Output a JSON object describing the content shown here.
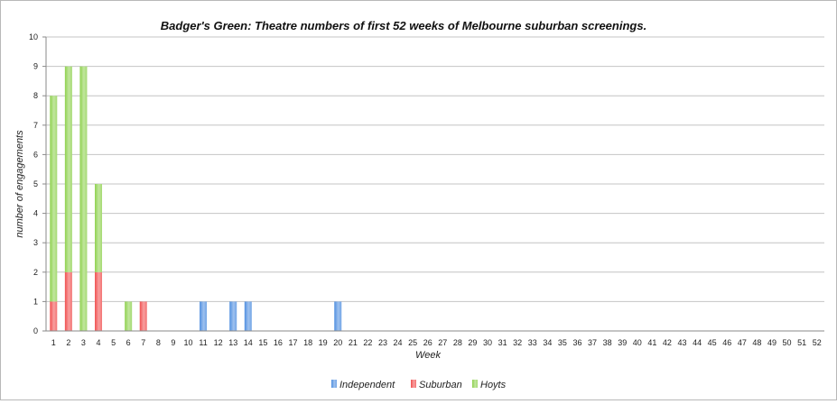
{
  "chart_data": {
    "type": "bar",
    "stacked": true,
    "title": "Badger's Green: Theatre numbers of first 52 weeks of Melbourne suburban screenings.",
    "xlabel": "Week",
    "ylabel": "number of engagements",
    "ylim": [
      0,
      10
    ],
    "yticks": [
      "0",
      "1",
      "2",
      "3",
      "4",
      "5",
      "6",
      "7",
      "8",
      "9",
      "10"
    ],
    "grid": true,
    "legend_position": "bottom",
    "categories": [
      "1",
      "2",
      "3",
      "4",
      "5",
      "6",
      "7",
      "8",
      "9",
      "10",
      "11",
      "12",
      "13",
      "14",
      "15",
      "16",
      "17",
      "18",
      "19",
      "20",
      "21",
      "22",
      "23",
      "24",
      "25",
      "26",
      "27",
      "28",
      "29",
      "30",
      "31",
      "32",
      "33",
      "34",
      "35",
      "36",
      "37",
      "38",
      "39",
      "40",
      "41",
      "42",
      "43",
      "44",
      "45",
      "46",
      "47",
      "48",
      "49",
      "50",
      "51",
      "52"
    ],
    "series": [
      {
        "name": "Independent",
        "color": "#4f8fe0",
        "values": [
          0,
          0,
          0,
          0,
          0,
          0,
          0,
          0,
          0,
          0,
          1,
          0,
          1,
          1,
          0,
          0,
          0,
          0,
          0,
          1,
          0,
          0,
          0,
          0,
          0,
          0,
          0,
          0,
          0,
          0,
          0,
          0,
          0,
          0,
          0,
          0,
          0,
          0,
          0,
          0,
          0,
          0,
          0,
          0,
          0,
          0,
          0,
          0,
          0,
          0,
          0,
          0
        ]
      },
      {
        "name": "Suburban",
        "color": "#f05050",
        "values": [
          1,
          2,
          0,
          2,
          0,
          0,
          1,
          0,
          0,
          0,
          0,
          0,
          0,
          0,
          0,
          0,
          0,
          0,
          0,
          0,
          0,
          0,
          0,
          0,
          0,
          0,
          0,
          0,
          0,
          0,
          0,
          0,
          0,
          0,
          0,
          0,
          0,
          0,
          0,
          0,
          0,
          0,
          0,
          0,
          0,
          0,
          0,
          0,
          0,
          0,
          0,
          0
        ]
      },
      {
        "name": "Hoyts",
        "color": "#8fd14f",
        "values": [
          7,
          7,
          9,
          3,
          0,
          1,
          0,
          0,
          0,
          0,
          0,
          0,
          0,
          0,
          0,
          0,
          0,
          0,
          0,
          0,
          0,
          0,
          0,
          0,
          0,
          0,
          0,
          0,
          0,
          0,
          0,
          0,
          0,
          0,
          0,
          0,
          0,
          0,
          0,
          0,
          0,
          0,
          0,
          0,
          0,
          0,
          0,
          0,
          0,
          0,
          0,
          0
        ]
      }
    ]
  }
}
